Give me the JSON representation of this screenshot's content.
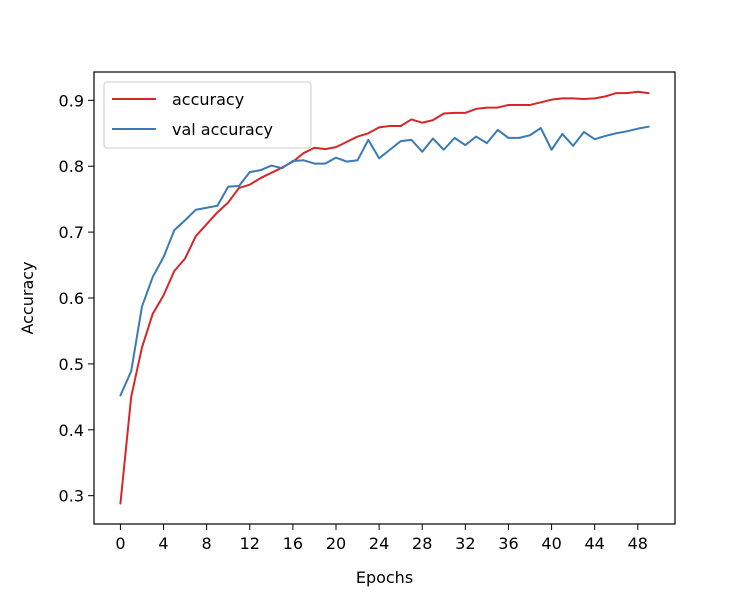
{
  "chart_data": {
    "type": "line",
    "xlabel": "Epochs",
    "ylabel": "Accuracy",
    "xlim": [
      -2.45,
      51.45
    ],
    "ylim": [
      0.257,
      0.943
    ],
    "xticks": [
      0,
      4,
      8,
      12,
      16,
      20,
      24,
      28,
      32,
      36,
      40,
      44,
      48
    ],
    "yticks": [
      0.3,
      0.4,
      0.5,
      0.6,
      0.7,
      0.8,
      0.9
    ],
    "grid": false,
    "legend": "upper left",
    "x": [
      0,
      1,
      2,
      3,
      4,
      5,
      6,
      7,
      8,
      9,
      10,
      11,
      12,
      13,
      14,
      15,
      16,
      17,
      18,
      19,
      20,
      21,
      22,
      23,
      24,
      25,
      26,
      27,
      28,
      29,
      30,
      31,
      32,
      33,
      34,
      35,
      36,
      37,
      38,
      39,
      40,
      41,
      42,
      43,
      44,
      45,
      46,
      47,
      48,
      49
    ],
    "series": [
      {
        "name": "accuracy",
        "color": "#d62728",
        "values": [
          0.288,
          0.45,
          0.525,
          0.576,
          0.604,
          0.641,
          0.66,
          0.694,
          0.712,
          0.73,
          0.745,
          0.767,
          0.772,
          0.782,
          0.79,
          0.798,
          0.807,
          0.82,
          0.828,
          0.826,
          0.829,
          0.837,
          0.845,
          0.85,
          0.859,
          0.861,
          0.861,
          0.871,
          0.866,
          0.87,
          0.88,
          0.881,
          0.881,
          0.887,
          0.889,
          0.889,
          0.893,
          0.893,
          0.893,
          0.897,
          0.901,
          0.903,
          0.903,
          0.902,
          0.903,
          0.906,
          0.911,
          0.911,
          0.913,
          0.911
        ]
      },
      {
        "name": "val accuracy",
        "color": "#3a7ab5",
        "values": [
          0.452,
          0.489,
          0.587,
          0.632,
          0.662,
          0.703,
          0.718,
          0.734,
          0.737,
          0.74,
          0.769,
          0.77,
          0.791,
          0.794,
          0.801,
          0.797,
          0.808,
          0.809,
          0.804,
          0.804,
          0.813,
          0.807,
          0.809,
          0.84,
          0.812,
          0.825,
          0.838,
          0.84,
          0.822,
          0.842,
          0.825,
          0.843,
          0.832,
          0.845,
          0.835,
          0.855,
          0.843,
          0.843,
          0.847,
          0.858,
          0.825,
          0.849,
          0.831,
          0.852,
          0.841,
          0.846,
          0.85,
          0.853,
          0.857,
          0.86
        ]
      }
    ]
  }
}
